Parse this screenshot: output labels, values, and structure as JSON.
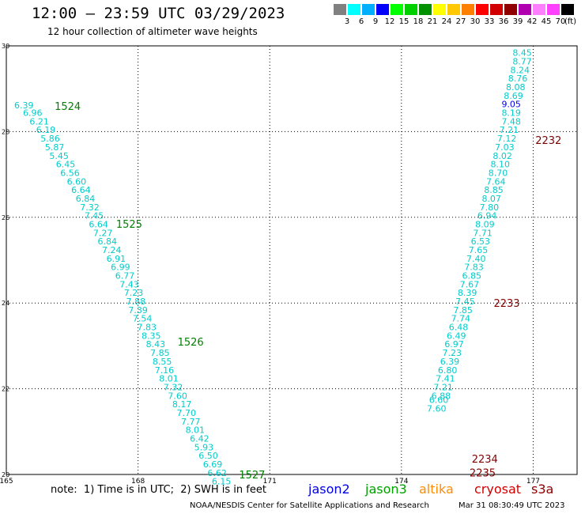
{
  "header": {
    "title": "12:00 – 23:59 UTC 03/29/2023",
    "subtitle": "12 hour collection of altimeter wave heights"
  },
  "colorbar": {
    "units": "(ft)",
    "colors": [
      "#808080",
      "#00ffff",
      "#00b0ff",
      "#0000ff",
      "#00ff00",
      "#00d000",
      "#009000",
      "#ffff00",
      "#ffc800",
      "#ff8000",
      "#ff0000",
      "#d00000",
      "#900000",
      "#b000b0",
      "#ff80ff",
      "#ff40ff",
      "#000000"
    ],
    "labels": [
      "3",
      "6",
      "9",
      "12",
      "15",
      "18",
      "21",
      "24",
      "27",
      "30",
      "33",
      "36",
      "39",
      "42",
      "45",
      "70"
    ]
  },
  "chart_data": {
    "type": "scatter",
    "xlim": [
      165,
      178
    ],
    "ylim": [
      20,
      30
    ],
    "x_ticks": [
      "165",
      "168",
      "171",
      "174",
      "177"
    ],
    "y_ticks": [
      "20",
      "22",
      "24",
      "26",
      "28",
      "30"
    ],
    "grid": true,
    "series": [
      {
        "name": "jason3",
        "color": "#00cccc",
        "points": [
          {
            "x": 165.4,
            "y": 28.62,
            "v": "6.39"
          },
          {
            "x": 165.6,
            "y": 28.44,
            "v": "6.96"
          },
          {
            "x": 165.75,
            "y": 28.24,
            "v": "6.21"
          },
          {
            "x": 165.9,
            "y": 28.04,
            "v": "6.19"
          },
          {
            "x": 166.0,
            "y": 27.84,
            "v": "5.86"
          },
          {
            "x": 166.1,
            "y": 27.64,
            "v": "5.87"
          },
          {
            "x": 166.2,
            "y": 27.44,
            "v": "5.45"
          },
          {
            "x": 166.35,
            "y": 27.24,
            "v": "6.45"
          },
          {
            "x": 166.45,
            "y": 27.04,
            "v": "6.56"
          },
          {
            "x": 166.6,
            "y": 26.84,
            "v": "6.60"
          },
          {
            "x": 166.7,
            "y": 26.64,
            "v": "6.64"
          },
          {
            "x": 166.8,
            "y": 26.44,
            "v": "6.84"
          },
          {
            "x": 166.9,
            "y": 26.24,
            "v": "7.32"
          },
          {
            "x": 167.0,
            "y": 26.04,
            "v": "7.45"
          },
          {
            "x": 167.1,
            "y": 25.84,
            "v": "6.64"
          },
          {
            "x": 167.2,
            "y": 25.64,
            "v": "7.27"
          },
          {
            "x": 167.3,
            "y": 25.44,
            "v": "6.84"
          },
          {
            "x": 167.4,
            "y": 25.24,
            "v": "7.24"
          },
          {
            "x": 167.5,
            "y": 25.04,
            "v": "6.91"
          },
          {
            "x": 167.6,
            "y": 24.84,
            "v": "6.99"
          },
          {
            "x": 167.7,
            "y": 24.64,
            "v": "6.77"
          },
          {
            "x": 167.8,
            "y": 24.44,
            "v": "7.43"
          },
          {
            "x": 167.9,
            "y": 24.24,
            "v": "7.23"
          },
          {
            "x": 167.95,
            "y": 24.04,
            "v": "7.88"
          },
          {
            "x": 168.0,
            "y": 23.84,
            "v": "7.39"
          },
          {
            "x": 168.1,
            "y": 23.64,
            "v": "7.54"
          },
          {
            "x": 168.2,
            "y": 23.44,
            "v": "7.83"
          },
          {
            "x": 168.3,
            "y": 23.24,
            "v": "8.35"
          },
          {
            "x": 168.4,
            "y": 23.04,
            "v": "8.43"
          },
          {
            "x": 168.5,
            "y": 22.84,
            "v": "7.85"
          },
          {
            "x": 168.55,
            "y": 22.64,
            "v": "8.55"
          },
          {
            "x": 168.6,
            "y": 22.44,
            "v": "7.16"
          },
          {
            "x": 168.7,
            "y": 22.24,
            "v": "8.01"
          },
          {
            "x": 168.8,
            "y": 22.04,
            "v": "7.32"
          },
          {
            "x": 168.9,
            "y": 21.84,
            "v": "7.60"
          },
          {
            "x": 169.0,
            "y": 21.64,
            "v": "8.17"
          },
          {
            "x": 169.1,
            "y": 21.44,
            "v": "7.70"
          },
          {
            "x": 169.2,
            "y": 21.24,
            "v": "7.77"
          },
          {
            "x": 169.3,
            "y": 21.04,
            "v": "8.01"
          },
          {
            "x": 169.4,
            "y": 20.84,
            "v": "6.42"
          },
          {
            "x": 169.5,
            "y": 20.64,
            "v": "5.93"
          },
          {
            "x": 169.6,
            "y": 20.44,
            "v": "6.50"
          },
          {
            "x": 169.7,
            "y": 20.24,
            "v": "6.69"
          },
          {
            "x": 169.8,
            "y": 20.04,
            "v": "6.62"
          },
          {
            "x": 169.9,
            "y": 19.84,
            "v": "6.15"
          },
          {
            "x": 176.75,
            "y": 29.84,
            "v": "8.45"
          },
          {
            "x": 176.75,
            "y": 29.64,
            "v": "8.77"
          },
          {
            "x": 176.7,
            "y": 29.44,
            "v": "8.24"
          },
          {
            "x": 176.65,
            "y": 29.24,
            "v": "8.76"
          },
          {
            "x": 176.6,
            "y": 29.04,
            "v": "8.08"
          },
          {
            "x": 176.55,
            "y": 28.84,
            "v": "8.69"
          },
          {
            "x": 176.5,
            "y": 28.44,
            "v": "8.19"
          },
          {
            "x": 176.5,
            "y": 28.24,
            "v": "7.48"
          },
          {
            "x": 176.45,
            "y": 28.04,
            "v": "7.21"
          },
          {
            "x": 176.4,
            "y": 27.84,
            "v": "7.12"
          },
          {
            "x": 176.35,
            "y": 27.64,
            "v": "7.03"
          },
          {
            "x": 176.3,
            "y": 27.44,
            "v": "8.02"
          },
          {
            "x": 176.25,
            "y": 27.24,
            "v": "8.10"
          },
          {
            "x": 176.2,
            "y": 27.04,
            "v": "8.70"
          },
          {
            "x": 176.15,
            "y": 26.84,
            "v": "7.64"
          },
          {
            "x": 176.1,
            "y": 26.64,
            "v": "8.85"
          },
          {
            "x": 176.05,
            "y": 26.44,
            "v": "8.07"
          },
          {
            "x": 176.0,
            "y": 26.24,
            "v": "7.80"
          },
          {
            "x": 175.95,
            "y": 26.04,
            "v": "6.94"
          },
          {
            "x": 175.9,
            "y": 25.84,
            "v": "8.09"
          },
          {
            "x": 175.85,
            "y": 25.64,
            "v": "7.71"
          },
          {
            "x": 175.8,
            "y": 25.44,
            "v": "6.53"
          },
          {
            "x": 175.75,
            "y": 25.24,
            "v": "7.65"
          },
          {
            "x": 175.7,
            "y": 25.04,
            "v": "7.40"
          },
          {
            "x": 175.65,
            "y": 24.84,
            "v": "7.83"
          },
          {
            "x": 175.6,
            "y": 24.64,
            "v": "6.85"
          },
          {
            "x": 175.55,
            "y": 24.44,
            "v": "7.67"
          },
          {
            "x": 175.5,
            "y": 24.24,
            "v": "8.39"
          },
          {
            "x": 175.45,
            "y": 24.04,
            "v": "7.45"
          },
          {
            "x": 175.4,
            "y": 23.84,
            "v": "7.85"
          },
          {
            "x": 175.35,
            "y": 23.64,
            "v": "7.74"
          },
          {
            "x": 175.3,
            "y": 23.44,
            "v": "6.48"
          },
          {
            "x": 175.25,
            "y": 23.24,
            "v": "6.49"
          },
          {
            "x": 175.2,
            "y": 23.04,
            "v": "6.97"
          },
          {
            "x": 175.15,
            "y": 22.84,
            "v": "7.23"
          },
          {
            "x": 175.1,
            "y": 22.64,
            "v": "6.39"
          },
          {
            "x": 175.05,
            "y": 22.44,
            "v": "6.80"
          },
          {
            "x": 175.0,
            "y": 22.24,
            "v": "7.41"
          },
          {
            "x": 174.95,
            "y": 22.04,
            "v": "7.21"
          },
          {
            "x": 174.9,
            "y": 21.84,
            "v": "6.88"
          },
          {
            "x": 174.85,
            "y": 21.74,
            "v": "6.60"
          },
          {
            "x": 174.8,
            "y": 21.54,
            "v": "7.60"
          }
        ]
      },
      {
        "name": "jason3",
        "color": "#0000ff",
        "points": [
          {
            "x": 176.5,
            "y": 28.64,
            "v": "9.05"
          }
        ]
      }
    ],
    "pass_labels": [
      {
        "text": "1524",
        "x": 166.1,
        "y": 28.6,
        "color": "#008000"
      },
      {
        "text": "1525",
        "x": 167.5,
        "y": 25.85,
        "color": "#008000"
      },
      {
        "text": "1526",
        "x": 168.9,
        "y": 23.1,
        "color": "#008000"
      },
      {
        "text": "1527",
        "x": 170.3,
        "y": 20.0,
        "color": "#008000"
      },
      {
        "text": "2232",
        "x": 177.05,
        "y": 27.8,
        "color": "#800000"
      },
      {
        "text": "2233",
        "x": 176.1,
        "y": 24.0,
        "color": "#800000"
      },
      {
        "text": "2234",
        "x": 175.6,
        "y": 20.37,
        "color": "#800000"
      },
      {
        "text": "2235",
        "x": 175.55,
        "y": 20.05,
        "color": "#800000"
      }
    ]
  },
  "footer": {
    "note": "note:  1) Time is in UTC;  2) SWH is in feet",
    "satellites": [
      {
        "label": "jason2",
        "color": "#0000e0"
      },
      {
        "label": "jason3",
        "color": "#00a000"
      },
      {
        "label": "altika",
        "color": "#ff8c00"
      },
      {
        "label": "cryosat",
        "color": "#d00000"
      },
      {
        "label": "s3a",
        "color": "#8b0000"
      }
    ],
    "credit": "NOAA/NESDIS Center for Satellite Applications and Research",
    "timestamp": "Mar 31 08:30:49 UTC 2023"
  }
}
